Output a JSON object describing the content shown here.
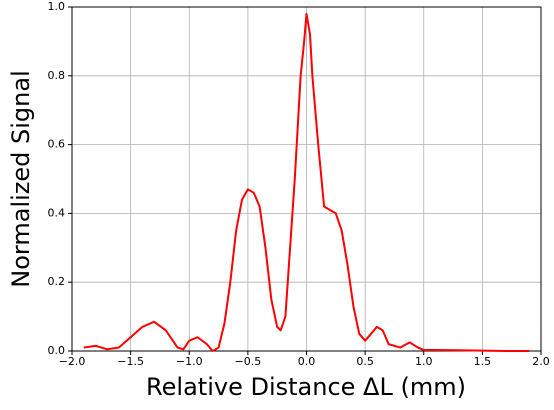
{
  "chart_data": {
    "type": "line",
    "xlabel": "Relative Distance ΔL (mm)",
    "ylabel": "Normalized Signal",
    "x": [
      -1.9,
      -1.8,
      -1.7,
      -1.6,
      -1.5,
      -1.4,
      -1.3,
      -1.2,
      -1.1,
      -1.05,
      -1.0,
      -0.93,
      -0.85,
      -0.8,
      -0.75,
      -0.7,
      -0.65,
      -0.6,
      -0.55,
      -0.5,
      -0.45,
      -0.4,
      -0.35,
      -0.3,
      -0.25,
      -0.22,
      -0.18,
      -0.15,
      -0.1,
      -0.05,
      -0.02,
      0,
      0.03,
      0.05,
      0.1,
      0.15,
      0.2,
      0.25,
      0.3,
      0.35,
      0.4,
      0.45,
      0.5,
      0.55,
      0.6,
      0.65,
      0.7,
      0.8,
      0.88,
      0.95,
      1.0,
      1.1,
      1.3,
      1.5,
      1.7,
      1.9
    ],
    "series": [
      {
        "name": "signal",
        "color": "#ff0000",
        "values": [
          0.01,
          0.015,
          0.005,
          0.01,
          0.04,
          0.07,
          0.085,
          0.06,
          0.01,
          0.005,
          0.03,
          0.04,
          0.02,
          0.0,
          0.01,
          0.08,
          0.2,
          0.35,
          0.44,
          0.47,
          0.46,
          0.42,
          0.3,
          0.15,
          0.07,
          0.06,
          0.1,
          0.25,
          0.5,
          0.8,
          0.9,
          0.98,
          0.92,
          0.8,
          0.6,
          0.42,
          0.41,
          0.4,
          0.35,
          0.25,
          0.13,
          0.05,
          0.03,
          0.05,
          0.07,
          0.06,
          0.02,
          0.01,
          0.025,
          0.01,
          0.003,
          0.003,
          0.002,
          0.001,
          0.0,
          0.0
        ]
      }
    ],
    "xlim": [
      -2,
      2
    ],
    "ylim": [
      0,
      1
    ],
    "xticks": [
      {
        "value": -2,
        "label": "−2.0"
      },
      {
        "value": -1.5,
        "label": "−1.5"
      },
      {
        "value": -1,
        "label": "−1.0"
      },
      {
        "value": -0.5,
        "label": "−0.5"
      },
      {
        "value": 0,
        "label": "0.0"
      },
      0.5,
      {
        "value": 1,
        "label": "1.0"
      },
      1.5,
      {
        "value": 2,
        "label": "2.0"
      }
    ],
    "yticks": [
      {
        "value": 0,
        "label": "0.0"
      },
      0.2,
      0.4,
      0.6,
      0.8,
      {
        "value": 1,
        "label": "1.0"
      }
    ],
    "grid": true
  }
}
